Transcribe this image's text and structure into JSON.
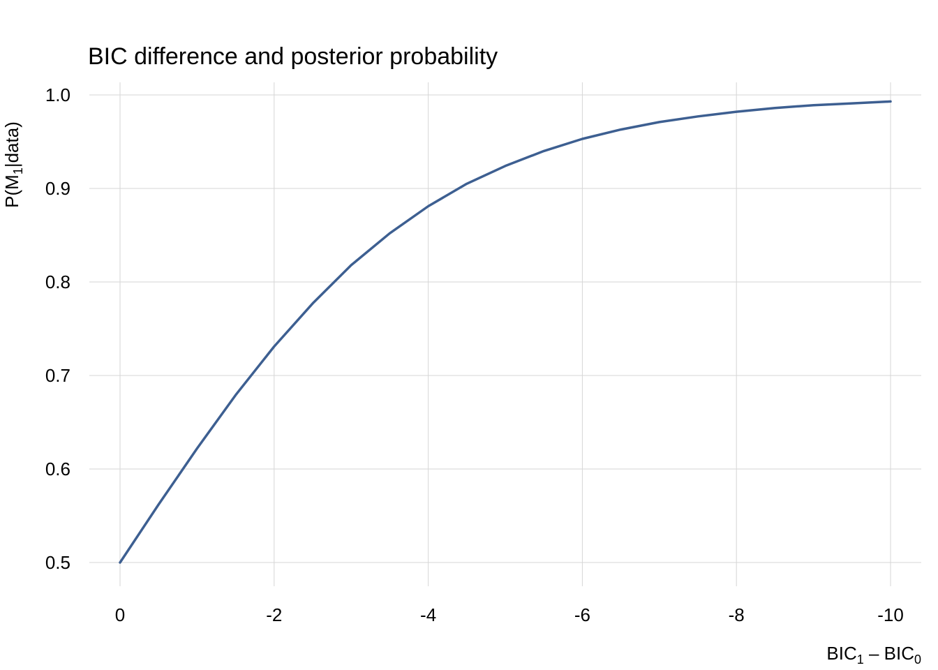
{
  "chart_data": {
    "type": "line",
    "title": "BIC difference and posterior probability",
    "xlabel": {
      "main": "BIC",
      "sub1": "1",
      "sep": " – BIC",
      "sub0": "0"
    },
    "ylabel": {
      "pre": "P(M",
      "sub": "1",
      "post": "|data)"
    },
    "xlim": [
      0,
      -10
    ],
    "ylim": [
      0.5,
      1.0
    ],
    "x_ticks": [
      0,
      -2,
      -4,
      -6,
      -8,
      -10
    ],
    "x_tick_labels": [
      "0",
      "-2",
      "-4",
      "-6",
      "-8",
      "-10"
    ],
    "y_ticks": [
      0.5,
      0.6,
      0.7,
      0.8,
      0.9,
      1.0
    ],
    "y_tick_labels": [
      "0.5",
      "0.6",
      "0.7",
      "0.8",
      "0.9",
      "1.0"
    ],
    "grid": true,
    "series": [
      {
        "color": "#3d5f91",
        "x": [
          0,
          -0.5,
          -1,
          -1.5,
          -2,
          -2.5,
          -3,
          -3.5,
          -4,
          -4.5,
          -5,
          -5.5,
          -6,
          -6.5,
          -7,
          -7.5,
          -8,
          -8.5,
          -9,
          -9.5,
          -10
        ],
        "y": [
          0.5,
          0.562,
          0.622,
          0.679,
          0.731,
          0.777,
          0.818,
          0.852,
          0.881,
          0.905,
          0.924,
          0.94,
          0.953,
          0.963,
          0.971,
          0.977,
          0.982,
          0.986,
          0.989,
          0.991,
          0.993
        ]
      }
    ]
  }
}
